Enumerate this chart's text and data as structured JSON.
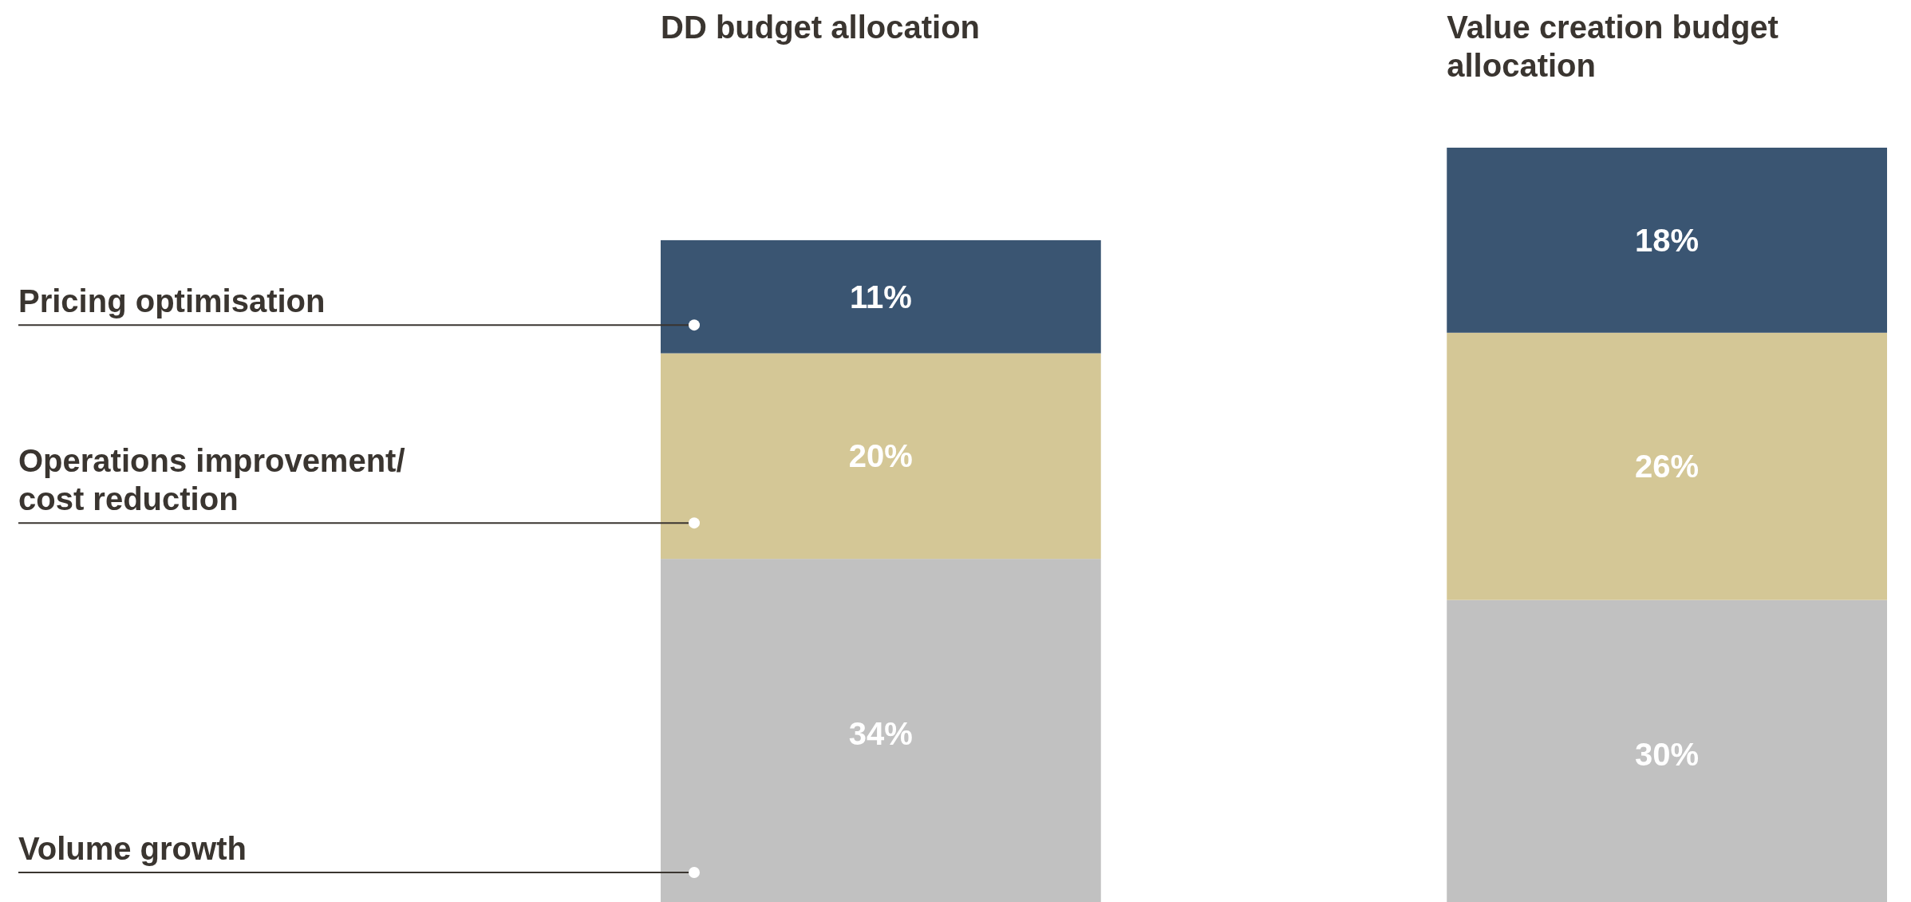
{
  "chart_data": {
    "type": "bar",
    "stacked": true,
    "legend": "left",
    "categories": [
      "DD budget allocation",
      "Value creation budget allocation"
    ],
    "series": [
      {
        "name": "Volume growth",
        "color": "#c1c1c1",
        "values": [
          34,
          30
        ],
        "value_labels": [
          "34%",
          "30%"
        ]
      },
      {
        "name": "Operations improvement/ cost reduction",
        "color": "#d4c796",
        "values": [
          20,
          26
        ],
        "value_labels": [
          "20%",
          "26%"
        ]
      },
      {
        "name": "Pricing optimisation",
        "color": "#3a5572",
        "values": [
          11,
          18
        ],
        "value_labels": [
          "11%",
          "18%"
        ]
      }
    ]
  }
}
